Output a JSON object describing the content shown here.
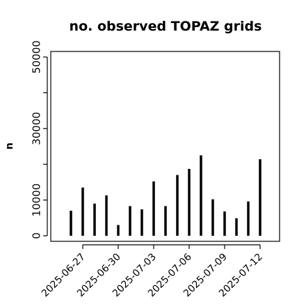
{
  "chart_data": {
    "type": "bar",
    "title": "no. observed TOPAZ grids",
    "xlabel": "",
    "ylabel": "n",
    "ylim": [
      0,
      52000
    ],
    "yticks": [
      0,
      10000,
      20000,
      30000,
      40000,
      50000
    ],
    "ytick_labels": [
      "0",
      "10000",
      "",
      "30000",
      "",
      "50000"
    ],
    "x": [
      "2025-06-26",
      "2025-06-27",
      "2025-06-28",
      "2025-06-29",
      "2025-06-30",
      "2025-07-01",
      "2025-07-02",
      "2025-07-03",
      "2025-07-04",
      "2025-07-05",
      "2025-07-06",
      "2025-07-07",
      "2025-07-08",
      "2025-07-09",
      "2025-07-10",
      "2025-07-11",
      "2025-07-12"
    ],
    "values": [
      7000,
      13500,
      9000,
      11300,
      3000,
      8300,
      7400,
      15200,
      8300,
      17000,
      18700,
      22500,
      10200,
      6800,
      4900,
      9600,
      21400
    ],
    "xtick_labels": [
      {
        "label": "2025-06-27",
        "color": "#000000"
      },
      {
        "label": "2025-06-30",
        "color": "#000000"
      },
      {
        "label": "2025-07-03",
        "color": "#228b22"
      },
      {
        "label": "2025-07-06",
        "color": "#000000"
      },
      {
        "label": "2025-07-09",
        "color": "#000000"
      },
      {
        "label": "2025-07-12",
        "color": "#000000"
      }
    ],
    "xtick_positions": [
      "2025-06-27",
      "2025-06-30",
      "2025-07-03",
      "2025-07-06",
      "2025-07-09",
      "2025-07-12"
    ],
    "bar_color": "#000000",
    "grid": false
  }
}
